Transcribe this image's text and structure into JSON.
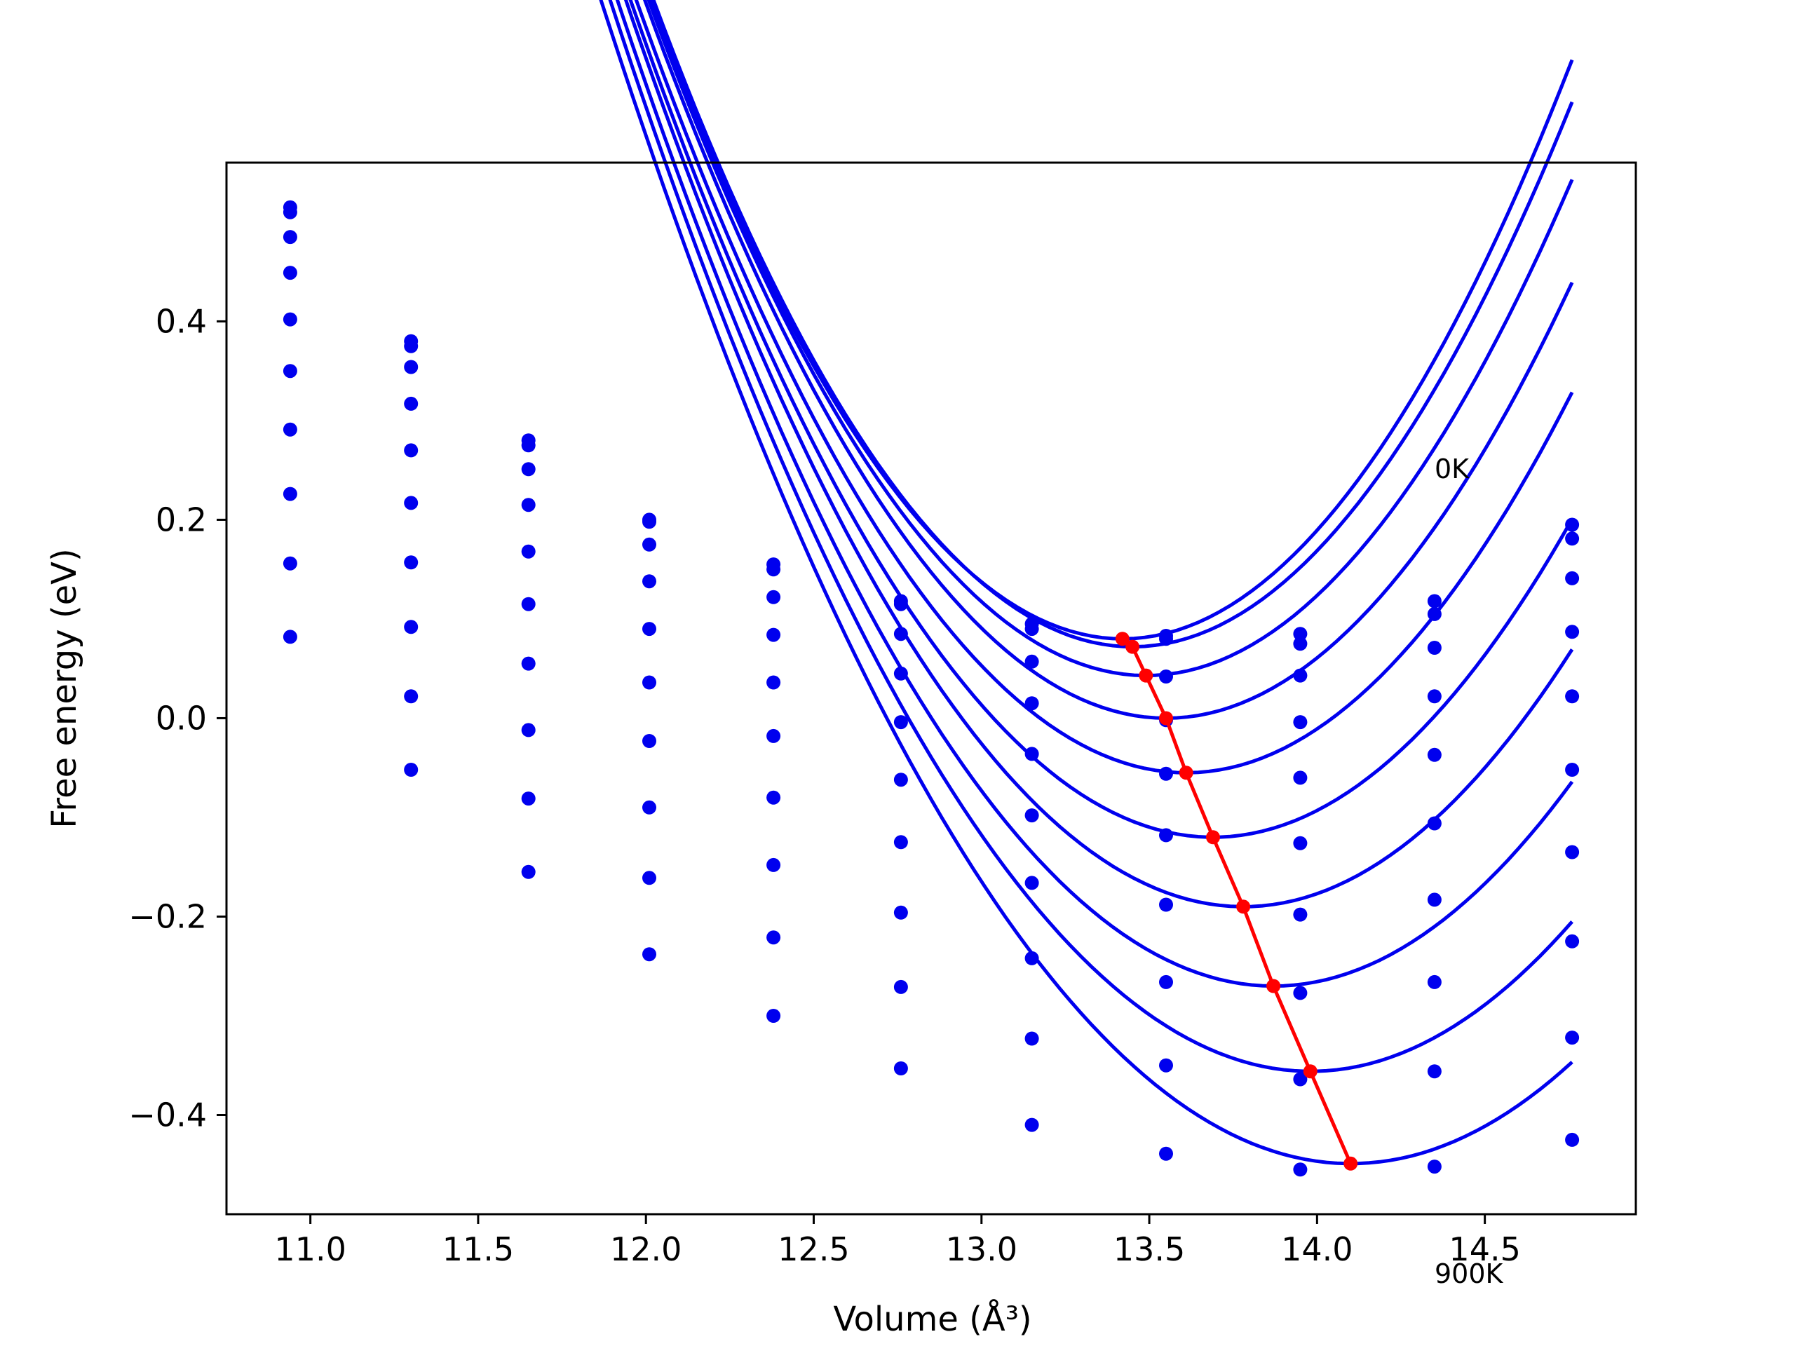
{
  "chart_data": {
    "type": "line",
    "xlabel": "Volume (Å³)",
    "ylabel": "Free energy (eV)",
    "xlim": [
      10.75,
      14.95
    ],
    "ylim": [
      -0.5,
      0.56
    ],
    "xticks": [
      11.0,
      11.5,
      12.0,
      12.5,
      13.0,
      13.5,
      14.0,
      14.5
    ],
    "xtick_labels": [
      "11.0",
      "11.5",
      "12.0",
      "12.5",
      "13.0",
      "13.5",
      "14.0",
      "14.5"
    ],
    "yticks": [
      -0.4,
      -0.2,
      0.0,
      0.2,
      0.4
    ],
    "ytick_labels": [
      "−0.4",
      "−0.2",
      "0.0",
      "0.2",
      "0.4"
    ],
    "grid": false,
    "annotations": [
      {
        "text": "0K",
        "x": 14.34,
        "y": 0.25
      },
      {
        "text": "900K",
        "x": 14.34,
        "y": -0.55
      }
    ],
    "colors": {
      "curves": "#0000ee",
      "minimum_line": "#ff0000"
    },
    "x": [
      10.94,
      11.3,
      11.65,
      12.01,
      12.38,
      12.76,
      13.15,
      13.55,
      13.95,
      14.35,
      14.76
    ],
    "series": [
      {
        "values": [
          0.515,
          0.38,
          0.28,
          0.2,
          0.155,
          0.118,
          0.095,
          0.083,
          0.085,
          0.118,
          0.195
        ]
      },
      {
        "values": [
          0.51,
          0.375,
          0.275,
          0.198,
          0.15,
          0.115,
          0.09,
          0.08,
          0.075,
          0.105,
          0.181
        ]
      },
      {
        "values": [
          0.485,
          0.354,
          0.251,
          0.175,
          0.122,
          0.085,
          0.057,
          0.042,
          0.043,
          0.071,
          0.141
        ]
      },
      {
        "values": [
          0.449,
          0.317,
          0.215,
          0.138,
          0.084,
          0.045,
          0.015,
          -0.002,
          -0.004,
          0.022,
          0.087
        ]
      },
      {
        "values": [
          0.402,
          0.27,
          0.168,
          0.09,
          0.036,
          -0.004,
          -0.036,
          -0.056,
          -0.06,
          -0.037,
          0.022
        ]
      },
      {
        "values": [
          0.35,
          0.217,
          0.115,
          0.036,
          -0.018,
          -0.062,
          -0.098,
          -0.118,
          -0.126,
          -0.106,
          -0.052
        ]
      },
      {
        "values": [
          0.291,
          0.157,
          0.055,
          -0.023,
          -0.08,
          -0.125,
          -0.166,
          -0.188,
          -0.198,
          -0.183,
          -0.135
        ]
      },
      {
        "values": [
          0.226,
          0.092,
          -0.012,
          -0.09,
          -0.148,
          -0.196,
          -0.242,
          -0.266,
          -0.277,
          -0.266,
          -0.225
        ]
      },
      {
        "values": [
          0.156,
          0.022,
          -0.081,
          -0.161,
          -0.221,
          -0.271,
          -0.323,
          -0.35,
          -0.364,
          -0.356,
          -0.322
        ]
      },
      {
        "values": [
          0.082,
          -0.052,
          -0.155,
          -0.238,
          -0.3,
          -0.353,
          -0.41,
          -0.439,
          -0.455,
          -0.452,
          -0.425
        ]
      }
    ],
    "fits": [
      {
        "vmin": 13.42,
        "emin": 0.08,
        "a": 0.325
      },
      {
        "vmin": 13.45,
        "emin": 0.072,
        "a": 0.32
      },
      {
        "vmin": 13.49,
        "emin": 0.043,
        "a": 0.31
      },
      {
        "vmin": 13.55,
        "emin": 0.0,
        "a": 0.3
      },
      {
        "vmin": 13.61,
        "emin": -0.055,
        "a": 0.29
      },
      {
        "vmin": 13.69,
        "emin": -0.12,
        "a": 0.28
      },
      {
        "vmin": 13.78,
        "emin": -0.19,
        "a": 0.27
      },
      {
        "vmin": 13.87,
        "emin": -0.27,
        "a": 0.26
      },
      {
        "vmin": 13.98,
        "emin": -0.356,
        "a": 0.248
      },
      {
        "vmin": 14.1,
        "emin": -0.449,
        "a": 0.235
      }
    ],
    "minimum_line": {
      "x": [
        13.42,
        13.45,
        13.49,
        13.55,
        13.61,
        13.69,
        13.78,
        13.87,
        13.98,
        14.1
      ],
      "y": [
        0.08,
        0.072,
        0.043,
        0.0,
        -0.055,
        -0.12,
        -0.19,
        -0.27,
        -0.356,
        -0.449
      ]
    }
  }
}
